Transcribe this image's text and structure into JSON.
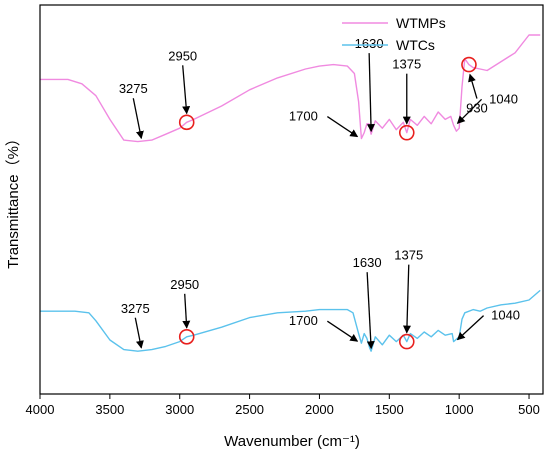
{
  "chart_data": {
    "type": "line",
    "xlabel": "Wavenumber (cm⁻¹)",
    "ylabel": "Transmittance（%）",
    "xlim": [
      4000,
      400
    ],
    "x_reversed": true,
    "yticks_shown": false,
    "grid": false,
    "legend_position": "top-right",
    "x_ticks": [
      4000,
      3500,
      3000,
      2500,
      2000,
      1500,
      1000,
      500
    ],
    "series": [
      {
        "name": "WTMPs",
        "color": "#f08ae0",
        "points": [
          [
            4000,
            30
          ],
          [
            3800,
            30
          ],
          [
            3700,
            33
          ],
          [
            3600,
            41
          ],
          [
            3500,
            57
          ],
          [
            3400,
            71
          ],
          [
            3300,
            72
          ],
          [
            3200,
            71
          ],
          [
            3100,
            67
          ],
          [
            3000,
            63
          ],
          [
            2950,
            59
          ],
          [
            2900,
            57
          ],
          [
            2700,
            48
          ],
          [
            2500,
            37
          ],
          [
            2300,
            29
          ],
          [
            2100,
            23
          ],
          [
            2000,
            21
          ],
          [
            1900,
            20
          ],
          [
            1800,
            21
          ],
          [
            1750,
            26
          ],
          [
            1720,
            45
          ],
          [
            1700,
            70
          ],
          [
            1680,
            66
          ],
          [
            1660,
            60
          ],
          [
            1645,
            60
          ],
          [
            1630,
            67
          ],
          [
            1600,
            58
          ],
          [
            1550,
            63
          ],
          [
            1500,
            57
          ],
          [
            1450,
            64
          ],
          [
            1400,
            59
          ],
          [
            1375,
            66
          ],
          [
            1350,
            57
          ],
          [
            1300,
            61
          ],
          [
            1250,
            55
          ],
          [
            1200,
            60
          ],
          [
            1150,
            52
          ],
          [
            1100,
            57
          ],
          [
            1060,
            55
          ],
          [
            1040,
            61
          ],
          [
            1020,
            65
          ],
          [
            1000,
            63
          ],
          [
            980,
            35
          ],
          [
            960,
            16
          ],
          [
            930,
            20
          ],
          [
            900,
            22
          ],
          [
            850,
            23
          ],
          [
            800,
            24
          ],
          [
            700,
            18
          ],
          [
            600,
            12
          ],
          [
            500,
            0
          ],
          [
            420,
            0
          ]
        ]
      },
      {
        "name": "WTCs",
        "color": "#5bc2ec",
        "points": [
          [
            4000,
            57
          ],
          [
            3750,
            57
          ],
          [
            3650,
            58
          ],
          [
            3600,
            63
          ],
          [
            3500,
            75
          ],
          [
            3400,
            81
          ],
          [
            3300,
            82
          ],
          [
            3200,
            81
          ],
          [
            3100,
            79
          ],
          [
            3000,
            76
          ],
          [
            2950,
            73
          ],
          [
            2900,
            72
          ],
          [
            2700,
            67
          ],
          [
            2500,
            61
          ],
          [
            2300,
            58
          ],
          [
            2100,
            57
          ],
          [
            2000,
            56
          ],
          [
            1900,
            56
          ],
          [
            1800,
            56
          ],
          [
            1760,
            58
          ],
          [
            1720,
            71
          ],
          [
            1700,
            77
          ],
          [
            1680,
            71
          ],
          [
            1660,
            74
          ],
          [
            1640,
            80
          ],
          [
            1630,
            82
          ],
          [
            1600,
            73
          ],
          [
            1550,
            78
          ],
          [
            1500,
            72
          ],
          [
            1450,
            76
          ],
          [
            1400,
            72
          ],
          [
            1375,
            76
          ],
          [
            1350,
            71
          ],
          [
            1300,
            74
          ],
          [
            1250,
            70
          ],
          [
            1200,
            73
          ],
          [
            1150,
            69
          ],
          [
            1100,
            72
          ],
          [
            1050,
            71
          ],
          [
            1040,
            76
          ],
          [
            1000,
            73
          ],
          [
            980,
            62
          ],
          [
            960,
            58
          ],
          [
            900,
            56
          ],
          [
            850,
            57
          ],
          [
            800,
            55
          ],
          [
            700,
            53
          ],
          [
            600,
            52
          ],
          [
            500,
            50
          ],
          [
            420,
            44
          ]
        ]
      }
    ],
    "annotations": [
      {
        "label": "3275",
        "series": "WTMPs",
        "x": 3275
      },
      {
        "label": "2950",
        "series": "WTMPs",
        "x": 2950,
        "circled": true
      },
      {
        "label": "1700",
        "series": "WTMPs",
        "x": 1700
      },
      {
        "label": "1630",
        "series": "WTMPs",
        "x": 1630
      },
      {
        "label": "1375",
        "series": "WTMPs",
        "x": 1375,
        "circled": true
      },
      {
        "label": "1040",
        "series": "WTMPs",
        "x": 1040
      },
      {
        "label": "930",
        "series": "WTMPs",
        "x": 930,
        "circled": true
      },
      {
        "label": "3275",
        "series": "WTCs",
        "x": 3275
      },
      {
        "label": "2950",
        "series": "WTCs",
        "x": 2950,
        "circled": true
      },
      {
        "label": "1700",
        "series": "WTCs",
        "x": 1700
      },
      {
        "label": "1630",
        "series": "WTCs",
        "x": 1630
      },
      {
        "label": "1375",
        "series": "WTCs",
        "x": 1375,
        "circled": true
      },
      {
        "label": "1040",
        "series": "WTCs",
        "x": 1040
      }
    ],
    "colors": {
      "arrow": "#000000",
      "circle": "#e8201e",
      "axis": "#000000"
    }
  }
}
